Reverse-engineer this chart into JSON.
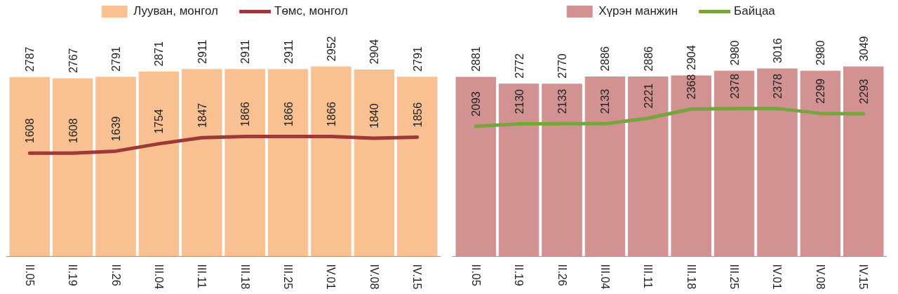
{
  "chart_data": [
    {
      "type": "bar",
      "categories": [
        "II.05",
        "II.19",
        "II.26",
        "III.04",
        "III.11",
        "III.18",
        "III.25",
        "IV.01",
        "IV.08",
        "IV.15"
      ],
      "data_labels": true,
      "legend": "top",
      "grid": false,
      "series": [
        {
          "name": "Лууван, монгол",
          "color": "#f9c192",
          "values": [
            2787,
            2767,
            2791,
            2871,
            2911,
            2911,
            2911,
            2952,
            2904,
            2791
          ]
        },
        {
          "name": "Төмс, монгол",
          "type": "line",
          "color": "#9b3a37",
          "values": [
            1608,
            1608,
            1639,
            1754,
            1847,
            1866,
            1866,
            1866,
            1840,
            1856
          ]
        }
      ]
    },
    {
      "type": "bar",
      "categories": [
        "II.05",
        "II.19",
        "II.26",
        "III.04",
        "III.11",
        "III.18",
        "III.25",
        "IV.01",
        "IV.08",
        "IV.15"
      ],
      "data_labels": true,
      "legend": "top",
      "grid": false,
      "series": [
        {
          "name": "Хүрэн манжин",
          "color": "#d29292",
          "values": [
            2881,
            2772,
            2770,
            2886,
            2886,
            2904,
            2980,
            3016,
            2980,
            3049
          ]
        },
        {
          "name": "Байцаа",
          "type": "line",
          "color": "#77a43f",
          "values": [
            2093,
            2130,
            2133,
            2133,
            2221,
            2368,
            2378,
            2378,
            2299,
            2293
          ]
        }
      ]
    }
  ]
}
